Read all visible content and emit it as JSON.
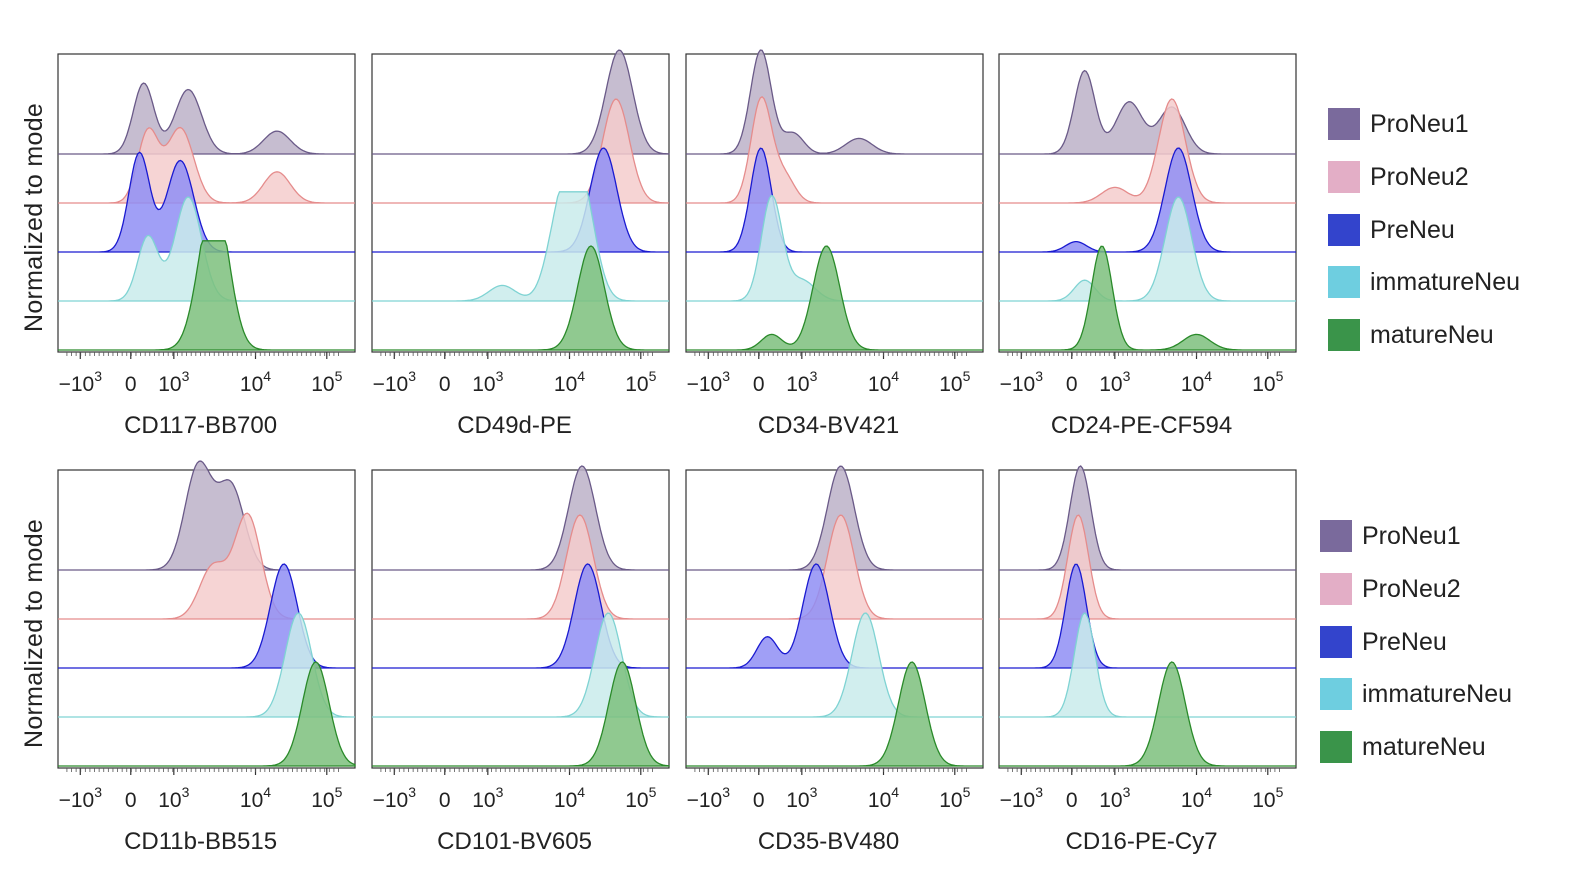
{
  "y_axis_label": "Normalized to mode",
  "legend": {
    "entries": [
      {
        "label": "ProNeu1",
        "color": "#7a6a9c",
        "fill": "#bcb1c8",
        "line": "#6a5a88"
      },
      {
        "label": "ProNeu2",
        "color": "#e3aec6",
        "fill": "#f4cccc",
        "line": "#e58c8c"
      },
      {
        "label": "PreNeu",
        "color": "#3344cc",
        "fill": "#8f8ef5",
        "line": "#1a1ad0"
      },
      {
        "label": "immatureNeu",
        "color": "#6ecee0",
        "fill": "#c9ebeb",
        "line": "#7fd3d3"
      },
      {
        "label": "matureNeu",
        "color": "#3a944a",
        "fill": "#7cbf7c",
        "line": "#2a8a2a"
      }
    ]
  },
  "chart_data": [
    {
      "type": "area",
      "panel": 1,
      "xlabel": "CD117-BB700",
      "ylabel": "Normalized to mode",
      "x_scale": "biexponential",
      "tick_labels": [
        "−10^3",
        "0",
        "10^3",
        "10^4",
        "10^5"
      ],
      "tick_values": [
        -1000,
        0,
        1000,
        10000,
        100000
      ],
      "xlim": [
        -2000,
        250000
      ],
      "series": [
        {
          "name": "ProNeu1",
          "peaks": [
            [
              300,
              0.68
            ],
            [
              1500,
              0.62
            ],
            [
              20000,
              0.22
            ]
          ]
        },
        {
          "name": "ProNeu2",
          "peaks": [
            [
              400,
              0.68
            ],
            [
              1200,
              0.72
            ],
            [
              20000,
              0.3
            ]
          ]
        },
        {
          "name": "PreNeu",
          "peaks": [
            [
              200,
              0.95
            ],
            [
              1200,
              0.88
            ]
          ]
        },
        {
          "name": "immatureNeu",
          "peaks": [
            [
              400,
              0.62
            ],
            [
              1500,
              1.0
            ]
          ]
        },
        {
          "name": "matureNeu",
          "peaks": [
            [
              2500,
              0.62
            ],
            [
              3500,
              1.0
            ]
          ]
        }
      ]
    },
    {
      "type": "area",
      "panel": 2,
      "xlabel": "CD49d-PE",
      "ylabel": "Normalized to mode",
      "x_scale": "biexponential",
      "tick_labels": [
        "−10^3",
        "0",
        "10^3",
        "10^4",
        "10^5"
      ],
      "tick_values": [
        -1000,
        0,
        1000,
        10000,
        100000
      ],
      "xlim": [
        -2000,
        250000
      ],
      "series": [
        {
          "name": "ProNeu1",
          "peaks": [
            [
              50000,
              1.0
            ]
          ]
        },
        {
          "name": "ProNeu2",
          "peaks": [
            [
              45000,
              1.0
            ]
          ]
        },
        {
          "name": "PreNeu",
          "peaks": [
            [
              30000,
              1.0
            ]
          ]
        },
        {
          "name": "immatureNeu",
          "peaks": [
            [
              1500,
              0.15
            ],
            [
              8000,
              0.85
            ],
            [
              15000,
              1.0
            ]
          ]
        },
        {
          "name": "matureNeu",
          "peaks": [
            [
              20000,
              1.0
            ]
          ]
        }
      ]
    },
    {
      "type": "area",
      "panel": 3,
      "xlabel": "CD34-BV421",
      "ylabel": "Normalized to mode",
      "x_scale": "biexponential",
      "tick_labels": [
        "−10^3",
        "0",
        "10^3",
        "10^4",
        "10^5"
      ],
      "tick_values": [
        -1000,
        0,
        1000,
        10000,
        100000
      ],
      "xlim": [
        -2000,
        250000
      ],
      "series": [
        {
          "name": "ProNeu1",
          "peaks": [
            [
              50,
              1.0
            ],
            [
              800,
              0.2
            ],
            [
              5000,
              0.15
            ]
          ]
        },
        {
          "name": "ProNeu2",
          "peaks": [
            [
              60,
              1.0
            ],
            [
              600,
              0.25
            ]
          ]
        },
        {
          "name": "PreNeu",
          "peaks": [
            [
              50,
              1.0
            ]
          ]
        },
        {
          "name": "immatureNeu",
          "peaks": [
            [
              300,
              1.0
            ],
            [
              1000,
              0.2
            ]
          ]
        },
        {
          "name": "matureNeu",
          "peaks": [
            [
              300,
              0.15
            ],
            [
              2000,
              1.0
            ]
          ]
        }
      ]
    },
    {
      "type": "area",
      "panel": 4,
      "xlabel": "CD24-PE-CF594",
      "ylabel": "Normalized to mode",
      "x_scale": "biexponential",
      "tick_labels": [
        "−10^3",
        "0",
        "10^3",
        "10^4",
        "10^5"
      ],
      "tick_values": [
        -1000,
        0,
        1000,
        10000,
        100000
      ],
      "xlim": [
        -2000,
        250000
      ],
      "series": [
        {
          "name": "ProNeu1",
          "peaks": [
            [
              300,
              0.8
            ],
            [
              1500,
              0.5
            ],
            [
              5000,
              0.45
            ]
          ]
        },
        {
          "name": "ProNeu2",
          "peaks": [
            [
              1000,
              0.15
            ],
            [
              5000,
              1.0
            ]
          ]
        },
        {
          "name": "PreNeu",
          "peaks": [
            [
              100,
              0.1
            ],
            [
              6000,
              1.0
            ]
          ]
        },
        {
          "name": "immatureNeu",
          "peaks": [
            [
              300,
              0.2
            ],
            [
              6000,
              1.0
            ]
          ]
        },
        {
          "name": "matureNeu",
          "peaks": [
            [
              700,
              1.0
            ],
            [
              10000,
              0.15
            ]
          ]
        }
      ]
    },
    {
      "type": "area",
      "panel": 5,
      "xlabel": "CD11b-BB515",
      "ylabel": "Normalized to mode",
      "x_scale": "biexponential",
      "tick_labels": [
        "−10^3",
        "0",
        "10^3",
        "10^4",
        "10^5"
      ],
      "tick_values": [
        -1000,
        0,
        1000,
        10000,
        100000
      ],
      "xlim": [
        -2000,
        250000
      ],
      "series": [
        {
          "name": "ProNeu1",
          "peaks": [
            [
              2000,
              1.0
            ],
            [
              5000,
              0.8
            ]
          ]
        },
        {
          "name": "ProNeu2",
          "peaks": [
            [
              3000,
              0.5
            ],
            [
              8000,
              1.0
            ]
          ]
        },
        {
          "name": "PreNeu",
          "peaks": [
            [
              25000,
              1.0
            ]
          ]
        },
        {
          "name": "immatureNeu",
          "peaks": [
            [
              40000,
              1.0
            ]
          ]
        },
        {
          "name": "matureNeu",
          "peaks": [
            [
              70000,
              1.0
            ]
          ]
        }
      ]
    },
    {
      "type": "area",
      "panel": 6,
      "xlabel": "CD101-BV605",
      "ylabel": "Normalized to mode",
      "x_scale": "biexponential",
      "tick_labels": [
        "−10^3",
        "0",
        "10^3",
        "10^4",
        "10^5"
      ],
      "tick_values": [
        -1000,
        0,
        1000,
        10000,
        100000
      ],
      "xlim": [
        -2000,
        250000
      ],
      "series": [
        {
          "name": "ProNeu1",
          "peaks": [
            [
              15000,
              1.0
            ]
          ]
        },
        {
          "name": "ProNeu2",
          "peaks": [
            [
              14000,
              1.0
            ]
          ]
        },
        {
          "name": "PreNeu",
          "peaks": [
            [
              18000,
              1.0
            ]
          ]
        },
        {
          "name": "immatureNeu",
          "peaks": [
            [
              35000,
              1.0
            ]
          ]
        },
        {
          "name": "matureNeu",
          "peaks": [
            [
              55000,
              1.0
            ]
          ]
        }
      ]
    },
    {
      "type": "area",
      "panel": 7,
      "xlabel": "CD35-BV480",
      "ylabel": "Normalized to mode",
      "x_scale": "biexponential",
      "tick_labels": [
        "−10^3",
        "0",
        "10^3",
        "10^4",
        "10^5"
      ],
      "tick_values": [
        -1000,
        0,
        1000,
        10000,
        100000
      ],
      "xlim": [
        -2000,
        250000
      ],
      "series": [
        {
          "name": "ProNeu1",
          "peaks": [
            [
              3000,
              1.0
            ]
          ]
        },
        {
          "name": "ProNeu2",
          "peaks": [
            [
              3000,
              1.0
            ]
          ]
        },
        {
          "name": "PreNeu",
          "peaks": [
            [
              1500,
              1.0
            ],
            [
              200,
              0.3
            ]
          ]
        },
        {
          "name": "immatureNeu",
          "peaks": [
            [
              6000,
              1.0
            ]
          ]
        },
        {
          "name": "matureNeu",
          "peaks": [
            [
              25000,
              1.0
            ]
          ]
        }
      ]
    },
    {
      "type": "area",
      "panel": 8,
      "xlabel": "CD16-PE-Cy7",
      "ylabel": "Normalized to mode",
      "x_scale": "biexponential",
      "tick_labels": [
        "−10^3",
        "0",
        "10^3",
        "10^4",
        "10^5"
      ],
      "tick_values": [
        -1000,
        0,
        1000,
        10000,
        100000
      ],
      "xlim": [
        -2000,
        250000
      ],
      "series": [
        {
          "name": "ProNeu1",
          "peaks": [
            [
              200,
              1.0
            ]
          ]
        },
        {
          "name": "ProNeu2",
          "peaks": [
            [
              150,
              1.0
            ]
          ]
        },
        {
          "name": "PreNeu",
          "peaks": [
            [
              100,
              1.0
            ]
          ]
        },
        {
          "name": "immatureNeu",
          "peaks": [
            [
              300,
              1.0
            ]
          ]
        },
        {
          "name": "matureNeu",
          "peaks": [
            [
              5000,
              1.0
            ]
          ]
        }
      ]
    }
  ]
}
